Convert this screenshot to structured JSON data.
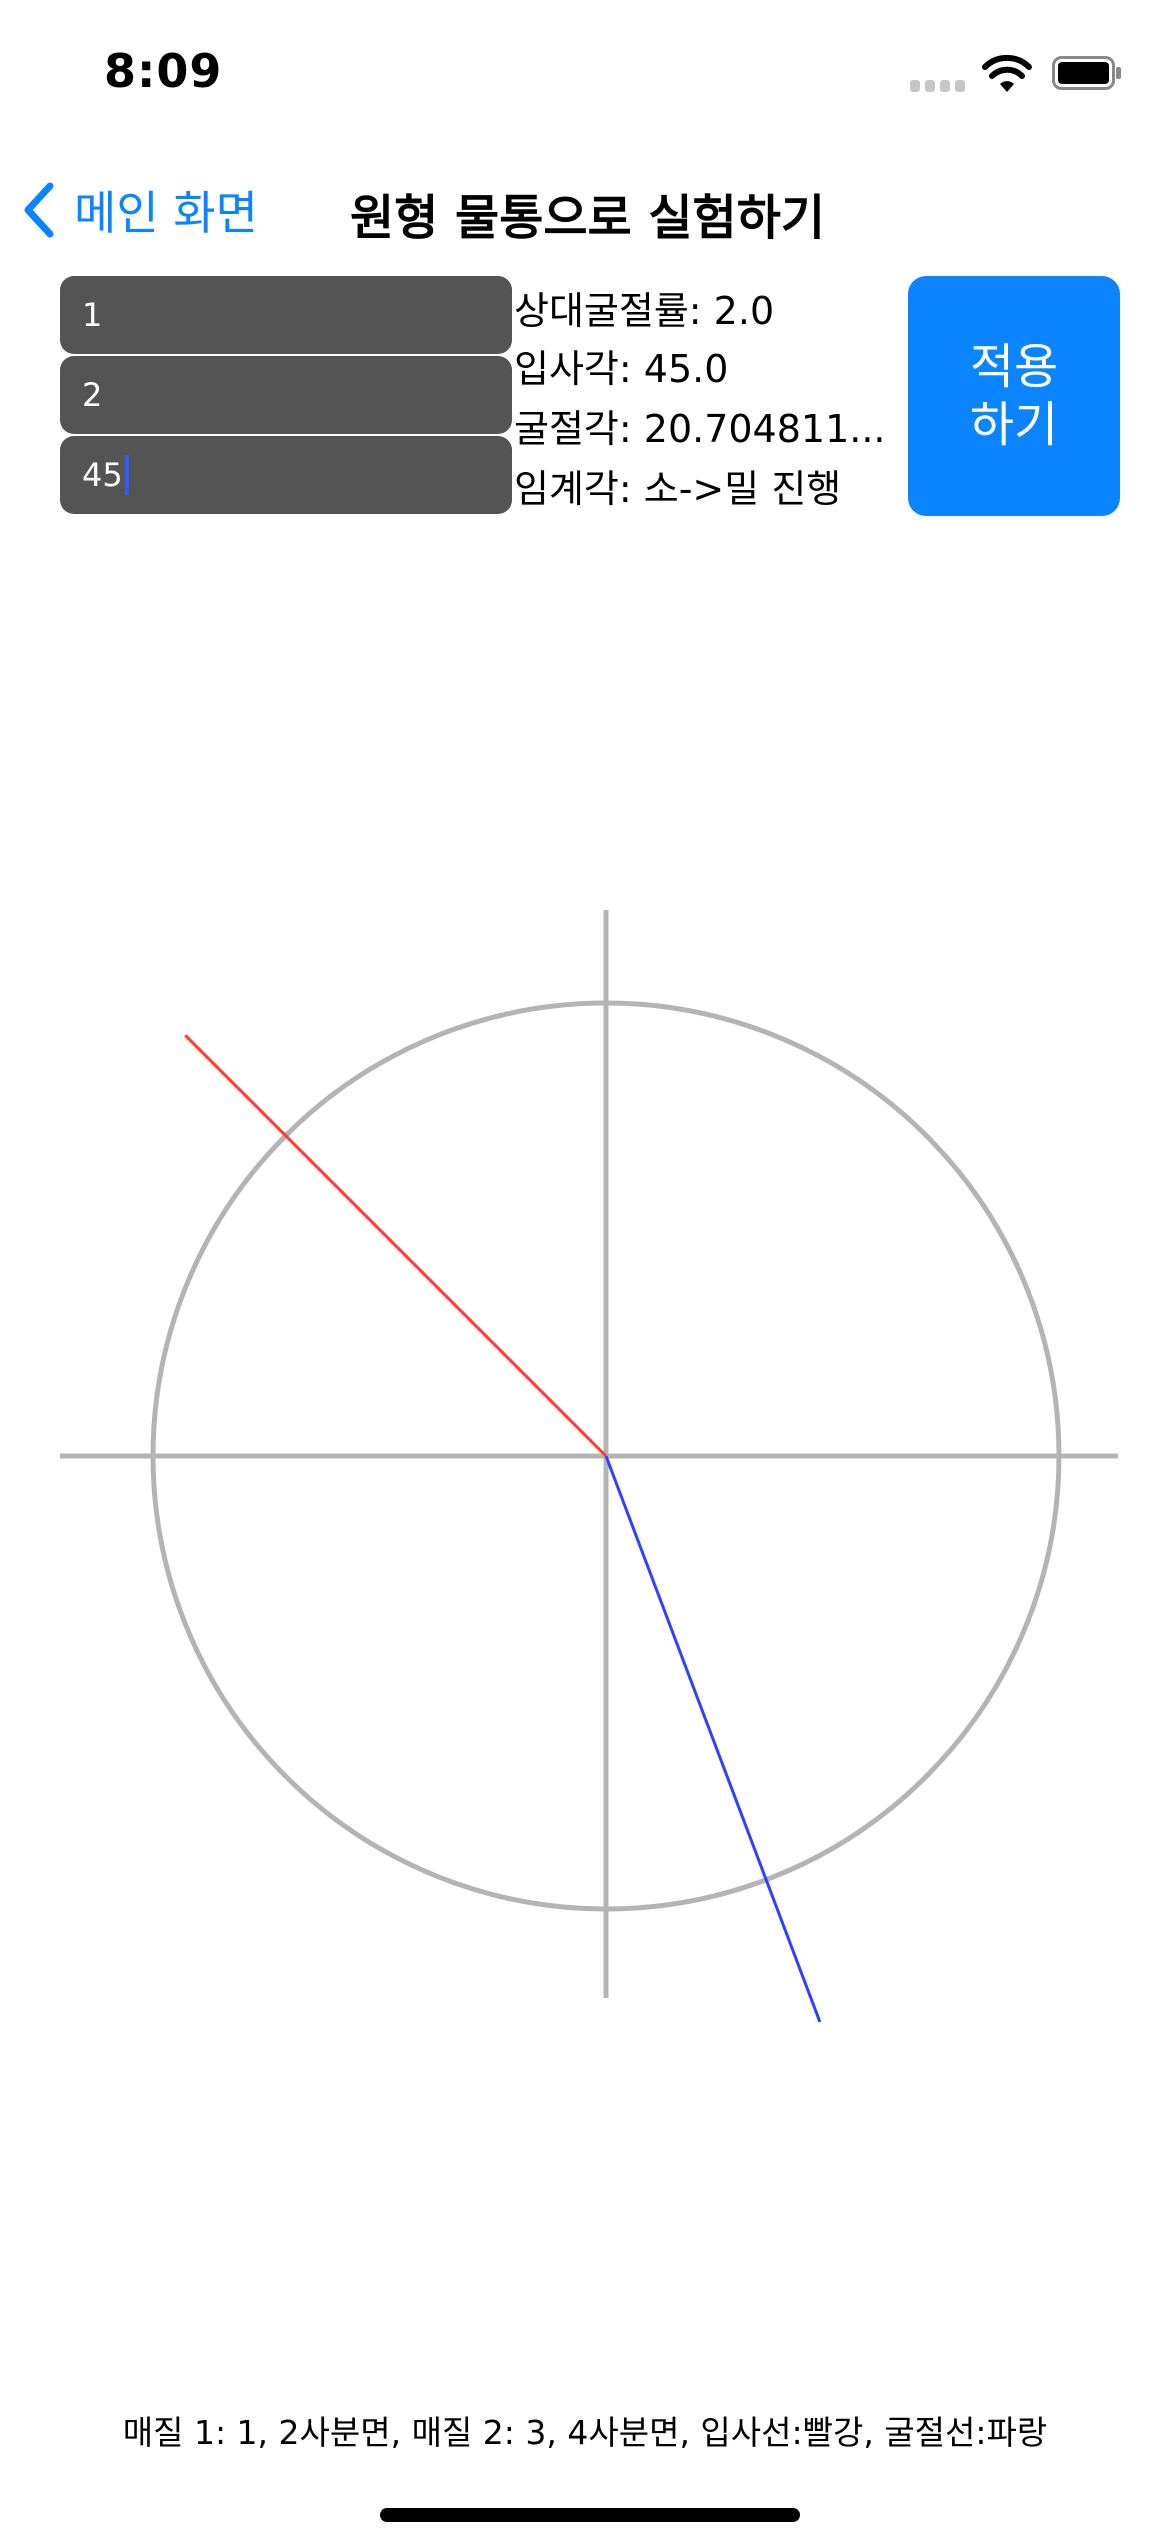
{
  "status_bar": {
    "time": "8:09",
    "icons": [
      "cellular-signal-icon",
      "wifi-icon",
      "battery-icon"
    ]
  },
  "nav": {
    "back_label": "메인 화면",
    "title": "원형 물통으로 실험하기"
  },
  "inputs": {
    "medium1": "1",
    "medium2": "2",
    "incidence_angle": "45"
  },
  "info": {
    "relative_index": "상대굴절률: 2.0",
    "incidence": "입사각: 45.0",
    "refraction": "굴절각: 20.704811...",
    "critical": "임계각: 소->밀 진행"
  },
  "apply_button": {
    "line1": "적용",
    "line2": "하기"
  },
  "diagram": {
    "incidence_angle_deg": 45,
    "refraction_angle_deg": 20.704811,
    "incident_ray_color": "#ff3b30",
    "refracted_ray_color": "#3040ff",
    "axis_color": "#b4b4b4",
    "circle_color": "#b4b4b4"
  },
  "footer": {
    "legend": "매질 1: 1, 2사분면, 매질 2: 3, 4사분면, 입사선:빨강, 굴절선:파랑"
  }
}
